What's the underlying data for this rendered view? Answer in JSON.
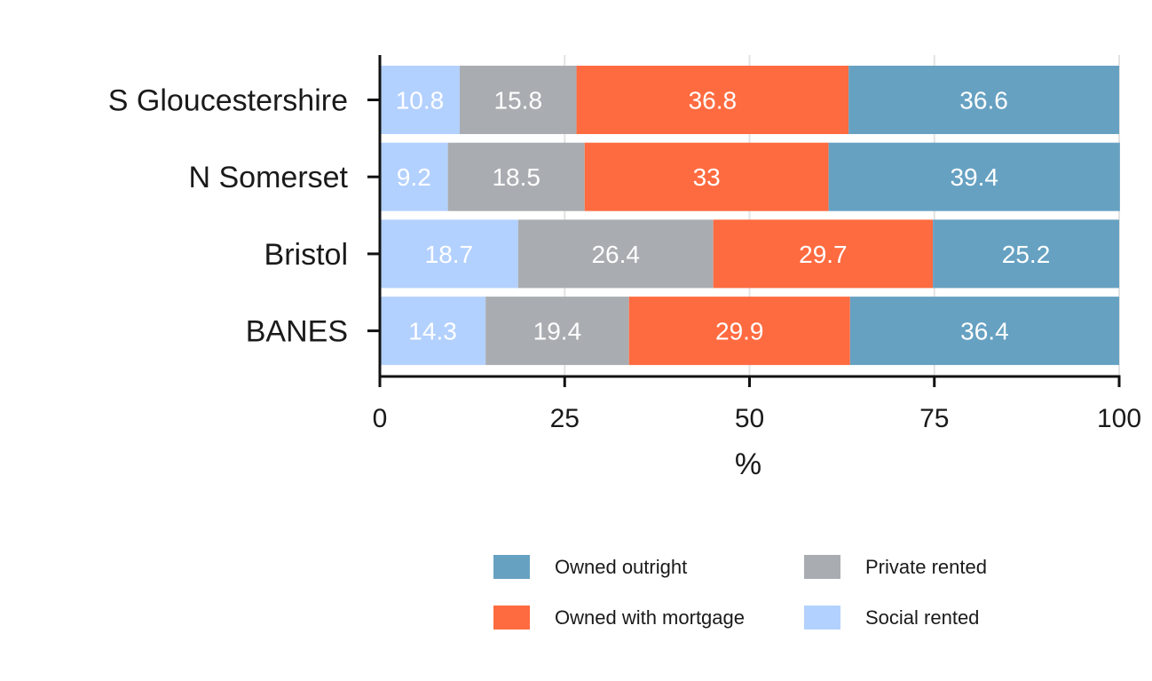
{
  "chart_data": {
    "type": "bar",
    "orientation": "horizontal",
    "stacked": true,
    "categories": [
      "BANES",
      "Bristol",
      "N Somerset",
      "S Gloucestershire"
    ],
    "series": [
      {
        "name": "Social rented",
        "color": "#b3d1ff",
        "values": [
          14.3,
          18.7,
          9.2,
          10.8
        ]
      },
      {
        "name": "Private rented",
        "color": "#a9adb1",
        "values": [
          19.4,
          26.4,
          18.5,
          15.8
        ]
      },
      {
        "name": "Owned with mortgage",
        "color": "#ff6b40",
        "values": [
          29.9,
          29.7,
          33,
          36.8
        ]
      },
      {
        "name": "Owned outright",
        "color": "#66a1c2",
        "values": [
          36.4,
          25.2,
          39.4,
          36.6
        ]
      }
    ],
    "xlabel": "%",
    "xlim": [
      0,
      100
    ],
    "xticks": [
      0,
      25,
      50,
      75,
      100
    ],
    "grid": true,
    "legend_position": "bottom",
    "legend_order": [
      "Owned outright",
      "Private rented",
      "Owned with mortgage",
      "Social rented"
    ]
  }
}
